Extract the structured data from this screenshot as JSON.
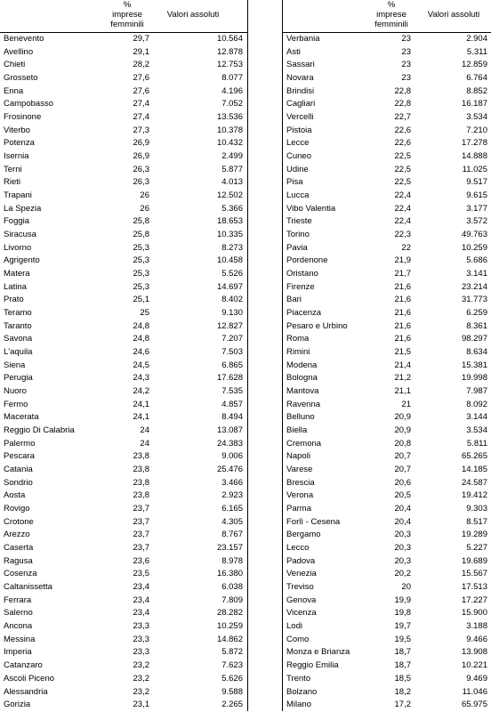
{
  "tables": [
    {
      "header": {
        "pct": [
          "%",
          "imprese",
          "femminili"
        ],
        "value": "Valori assoluti"
      },
      "rows": [
        [
          "Benevento",
          "29,7",
          "10.564"
        ],
        [
          "Avellino",
          "29,1",
          "12.878"
        ],
        [
          "Chieti",
          "28,2",
          "12.753"
        ],
        [
          "Grosseto",
          "27,6",
          "8.077"
        ],
        [
          "Enna",
          "27,6",
          "4.196"
        ],
        [
          "Campobasso",
          "27,4",
          "7.052"
        ],
        [
          "Frosinone",
          "27,4",
          "13.536"
        ],
        [
          "Viterbo",
          "27,3",
          "10.378"
        ],
        [
          "Potenza",
          "26,9",
          "10.432"
        ],
        [
          "Isernia",
          "26,9",
          "2.499"
        ],
        [
          "Terni",
          "26,3",
          "5.877"
        ],
        [
          "Rieti",
          "26,3",
          "4.013"
        ],
        [
          "Trapani",
          "26",
          "12.502"
        ],
        [
          "La Spezia",
          "26",
          "5.366"
        ],
        [
          "Foggia",
          "25,8",
          "18.653"
        ],
        [
          "Siracusa",
          "25,8",
          "10.335"
        ],
        [
          "Livorno",
          "25,3",
          "8.273"
        ],
        [
          "Agrigento",
          "25,3",
          "10.458"
        ],
        [
          "Matera",
          "25,3",
          "5.526"
        ],
        [
          "Latina",
          "25,3",
          "14.697"
        ],
        [
          "Prato",
          "25,1",
          "8.402"
        ],
        [
          "Teramo",
          "25",
          "9.130"
        ],
        [
          "Taranto",
          "24,8",
          "12.827"
        ],
        [
          "Savona",
          "24,8",
          "7.207"
        ],
        [
          "L'aquila",
          "24,6",
          "7.503"
        ],
        [
          "Siena",
          "24,5",
          "6.865"
        ],
        [
          "Perugia",
          "24,3",
          "17.628"
        ],
        [
          "Nuoro",
          "24,2",
          "7.535"
        ],
        [
          "Fermo",
          "24,1",
          "4.857"
        ],
        [
          "Macerata",
          "24,1",
          "8.494"
        ],
        [
          "Reggio Di Calabria",
          "24",
          "13.087"
        ],
        [
          "Palermo",
          "24",
          "24.383"
        ],
        [
          "Pescara",
          "23,8",
          "9.006"
        ],
        [
          "Catania",
          "23,8",
          "25.476"
        ],
        [
          "Sondrio",
          "23,8",
          "3.466"
        ],
        [
          "Aosta",
          "23,8",
          "2.923"
        ],
        [
          "Rovigo",
          "23,7",
          "6.165"
        ],
        [
          "Crotone",
          "23,7",
          "4.305"
        ],
        [
          "Arezzo",
          "23,7",
          "8.767"
        ],
        [
          "Caserta",
          "23,7",
          "23.157"
        ],
        [
          "Ragusa",
          "23,6",
          "8.978"
        ],
        [
          "Cosenza",
          "23,5",
          "16.380"
        ],
        [
          "Caltanissetta",
          "23,4",
          "6.038"
        ],
        [
          "Ferrara",
          "23,4",
          "7.809"
        ],
        [
          "Salerno",
          "23,4",
          "28.282"
        ],
        [
          "Ancona",
          "23,3",
          "10.259"
        ],
        [
          "Messina",
          "23,3",
          "14.862"
        ],
        [
          "Imperia",
          "23,3",
          "5.872"
        ],
        [
          "Catanzaro",
          "23,2",
          "7.623"
        ],
        [
          "Ascoli Piceno",
          "23,2",
          "5.626"
        ],
        [
          "Alessandria",
          "23,2",
          "9.588"
        ],
        [
          "Gorizia",
          "23,1",
          "2.265"
        ]
      ]
    },
    {
      "header": {
        "pct": [
          "%",
          "imprese",
          "femminili"
        ],
        "value": "Valori assoluti"
      },
      "rows": [
        [
          "Verbania",
          "23",
          "2.904"
        ],
        [
          "Asti",
          "23",
          "5.311"
        ],
        [
          "Sassari",
          "23",
          "12.859"
        ],
        [
          "Novara",
          "23",
          "6.764"
        ],
        [
          "Brindisi",
          "22,8",
          "8.852"
        ],
        [
          "Cagliari",
          "22,8",
          "16.187"
        ],
        [
          "Vercelli",
          "22,7",
          "3.534"
        ],
        [
          "Pistoia",
          "22,6",
          "7.210"
        ],
        [
          "Lecce",
          "22,6",
          "17.278"
        ],
        [
          "Cuneo",
          "22,5",
          "14.888"
        ],
        [
          "Udine",
          "22,5",
          "11.025"
        ],
        [
          "Pisa",
          "22,5",
          "9.517"
        ],
        [
          "Lucca",
          "22,4",
          "9.615"
        ],
        [
          "Vibo Valentia",
          "22,4",
          "3.177"
        ],
        [
          "Trieste",
          "22,4",
          "3.572"
        ],
        [
          "Torino",
          "22,3",
          "49.763"
        ],
        [
          "Pavia",
          "22",
          "10.259"
        ],
        [
          "Pordenone",
          "21,9",
          "5.686"
        ],
        [
          "Oristano",
          "21,7",
          "3.141"
        ],
        [
          "Firenze",
          "21,6",
          "23.214"
        ],
        [
          "Bari",
          "21,6",
          "31.773"
        ],
        [
          "Piacenza",
          "21,6",
          "6.259"
        ],
        [
          "Pesaro e Urbino",
          "21,6",
          "8.361"
        ],
        [
          "Roma",
          "21,6",
          "98.297"
        ],
        [
          "Rimini",
          "21,5",
          "8.634"
        ],
        [
          "Modena",
          "21,4",
          "15.381"
        ],
        [
          "Bologna",
          "21,2",
          "19.998"
        ],
        [
          "Mantova",
          "21,1",
          "7.987"
        ],
        [
          "Ravenna",
          "21",
          "8.092"
        ],
        [
          "Belluno",
          "20,9",
          "3.144"
        ],
        [
          "Biella",
          "20,9",
          "3.534"
        ],
        [
          "Cremona",
          "20,8",
          "5.811"
        ],
        [
          "Napoli",
          "20,7",
          "65.265"
        ],
        [
          "Varese",
          "20,7",
          "14.185"
        ],
        [
          "Brescia",
          "20,6",
          "24.587"
        ],
        [
          "Verona",
          "20,5",
          "19.412"
        ],
        [
          "Parma",
          "20,4",
          "9.303"
        ],
        [
          "Forlì - Cesena",
          "20,4",
          "8.517"
        ],
        [
          "Bergamo",
          "20,3",
          "19.289"
        ],
        [
          "Lecco",
          "20,3",
          "5.227"
        ],
        [
          "Padova",
          "20,3",
          "19.689"
        ],
        [
          "Venezia",
          "20,2",
          "15.567"
        ],
        [
          "Treviso",
          "20",
          "17.513"
        ],
        [
          "Genova",
          "19,9",
          "17.227"
        ],
        [
          "Vicenza",
          "19,8",
          "15.900"
        ],
        [
          "Lodi",
          "19,7",
          "3.188"
        ],
        [
          "Como",
          "19,5",
          "9.466"
        ],
        [
          "Monza e Brianza",
          "18,7",
          "13.908"
        ],
        [
          "Reggio Emilia",
          "18,7",
          "10.221"
        ],
        [
          "Trento",
          "18,5",
          "9.469"
        ],
        [
          "Bolzano",
          "18,2",
          "11.046"
        ],
        [
          "Milano",
          "17,2",
          "65.975"
        ]
      ]
    }
  ]
}
